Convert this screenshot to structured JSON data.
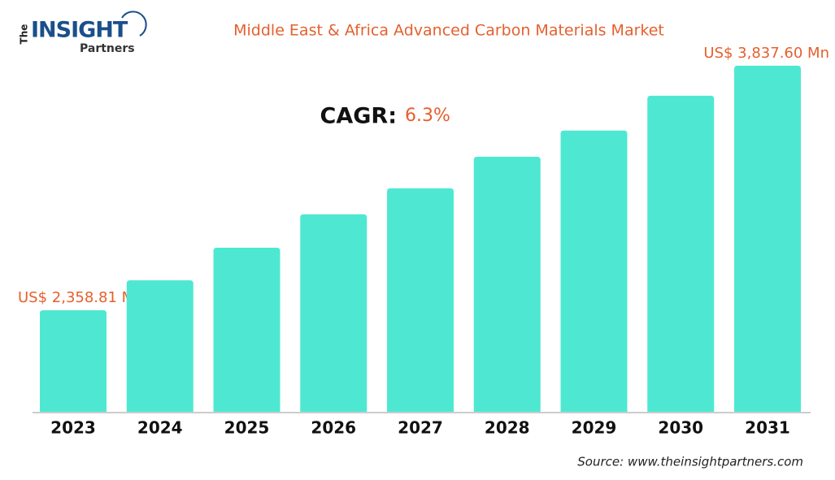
{
  "logo": {
    "the": "The",
    "insight": "INSIGHT",
    "partners": "Partners"
  },
  "chart_data": {
    "type": "bar",
    "title": "Middle East & Africa Advanced Carbon Materials Market",
    "cagr_label": "CAGR:",
    "cagr_value": "6.3%",
    "source": "Source: www.theinsightpartners.com",
    "categories": [
      "2023",
      "2024",
      "2025",
      "2026",
      "2027",
      "2028",
      "2029",
      "2030",
      "2031"
    ],
    "values": [
      2358.81,
      2540,
      2737,
      2939,
      3096,
      3287,
      3445,
      3656,
      3837.6
    ],
    "value_labels": [
      "US$ 2,358.81 Mn",
      null,
      null,
      null,
      null,
      null,
      null,
      null,
      "US$ 3,837.60 Mn"
    ],
    "color": "#4ee8d2",
    "ylim": [
      1745,
      3940
    ]
  }
}
